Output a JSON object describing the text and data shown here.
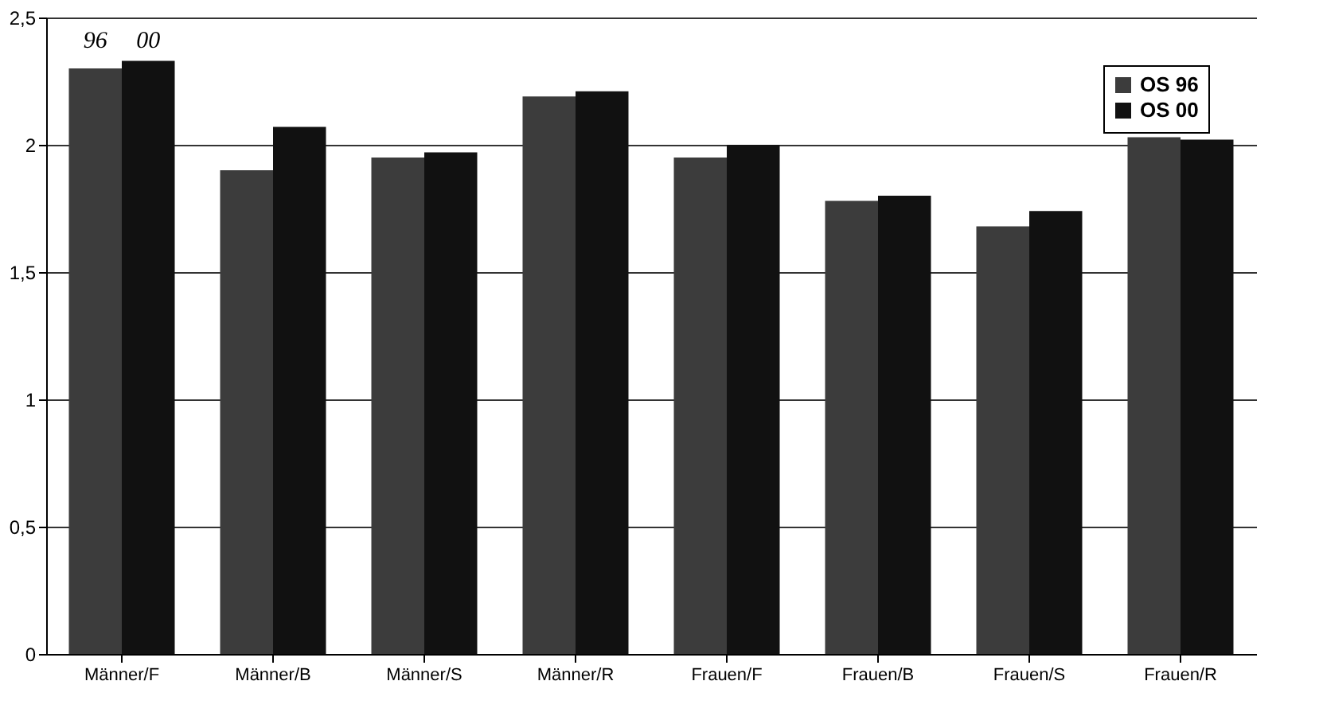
{
  "chart_data": {
    "type": "bar",
    "categories": [
      "Männer/F",
      "Männer/B",
      "Männer/S",
      "Männer/R",
      "Frauen/F",
      "Frauen/B",
      "Frauen/S",
      "Frauen/R"
    ],
    "series": [
      {
        "name": "OS 96",
        "color": "#3c3c3c",
        "values": [
          2.3,
          1.9,
          1.95,
          2.19,
          1.95,
          1.78,
          1.68,
          2.03
        ]
      },
      {
        "name": "OS 00",
        "color": "#111111",
        "values": [
          2.33,
          2.07,
          1.97,
          2.21,
          2.0,
          1.8,
          1.74,
          2.02
        ]
      }
    ],
    "ylim": [
      0,
      2.5
    ],
    "yticks": [
      0,
      {
        "value": 0.5,
        "label": "0,5"
      },
      1,
      {
        "value": 1.5,
        "label": "1,5"
      },
      2,
      {
        "value": 2.5,
        "label": "2,5"
      }
    ],
    "grid": "y",
    "legend": "top right",
    "annotations": [
      "96",
      "00"
    ]
  }
}
